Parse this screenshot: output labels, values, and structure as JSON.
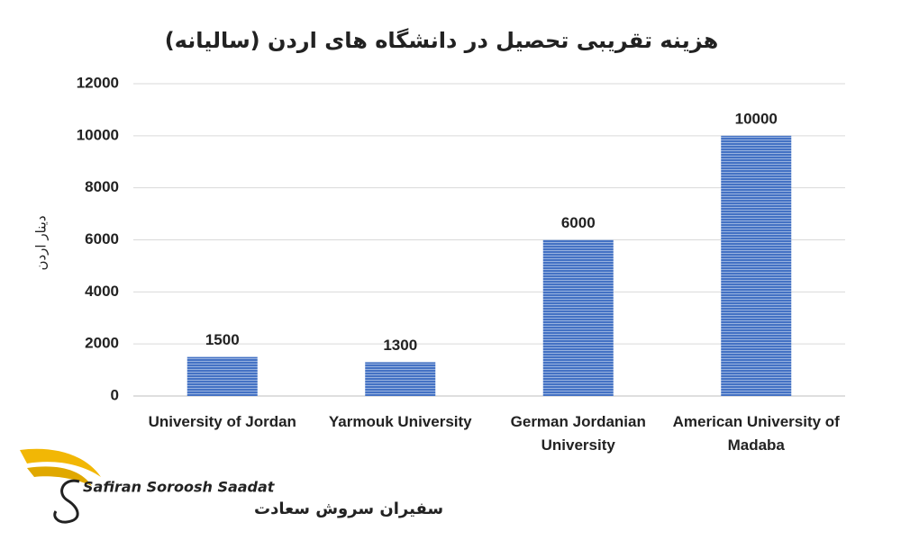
{
  "chart_data": {
    "type": "bar",
    "title": "هزینه تقریبی تحصیل در دانشگاه های اردن (سالیانه)",
    "y_label": "دینار اردن",
    "categories": [
      "University of Jordan",
      "Yarmouk University",
      "German Jordanian University",
      "American University of Madaba"
    ],
    "values": [
      1500,
      1300,
      6000,
      10000
    ],
    "color": "#4472c4",
    "ylim": [
      0,
      12000
    ],
    "yticks": [
      0,
      2000,
      4000,
      6000,
      8000,
      10000,
      12000
    ],
    "grid": true
  },
  "logo": {
    "name": "Safiran Soroosh Saadat",
    "name_fa": "سفیران سروش سعادت"
  }
}
